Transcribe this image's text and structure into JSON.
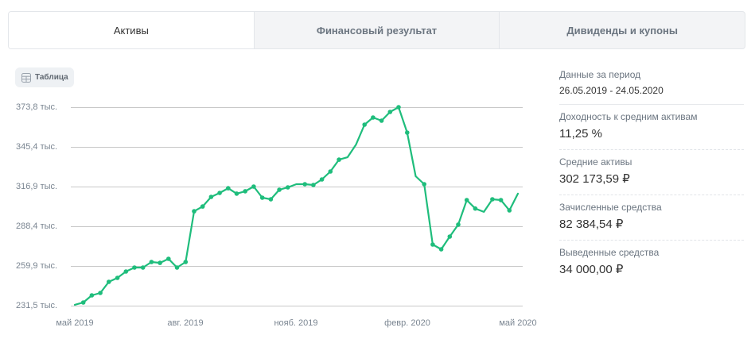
{
  "tabs": [
    {
      "label": "Активы",
      "active": true
    },
    {
      "label": "Финансовый результат",
      "active": false
    },
    {
      "label": "Дивиденды и купоны",
      "active": false
    }
  ],
  "table_button": {
    "label": "Таблица",
    "icon": "table-icon"
  },
  "sidebar": {
    "period": {
      "label": "Данные за период",
      "value": "26.05.2019 - 24.05.2020"
    },
    "stats": [
      {
        "label": "Доходность к средним активам",
        "value": "11,25 %"
      },
      {
        "label": "Средние активы",
        "value": "302 173,59 ₽"
      },
      {
        "label": "Зачисленные средства",
        "value": "82 384,54 ₽"
      },
      {
        "label": "Выведенные средства",
        "value": "34 000,00 ₽"
      }
    ]
  },
  "colors": {
    "line": "#1fbd7c",
    "grid": "#c8c8c8",
    "tick_text": "#7a8591"
  },
  "chart_data": {
    "type": "line",
    "title": "",
    "xlabel": "",
    "ylabel": "",
    "unit": "тыс. ₽",
    "y_ticks": [
      "373,8 тыс.",
      "345,4 тыс.",
      "316,9 тыс.",
      "288,4 тыс.",
      "259,9 тыс.",
      "231,5 тыс."
    ],
    "y_tick_values": [
      373.8,
      345.4,
      316.9,
      288.4,
      259.9,
      231.5
    ],
    "ylim": [
      231.5,
      373.8
    ],
    "x_ticks": [
      "май 2019",
      "авг. 2019",
      "нояб. 2019",
      "февр. 2020",
      "май 2020"
    ],
    "x_range": [
      "26.05.2019",
      "24.05.2020"
    ],
    "grid": true,
    "legend": null,
    "series": [
      {
        "name": "Активы",
        "points": [
          {
            "i": 0,
            "v": 232.1,
            "dot": false
          },
          {
            "i": 1,
            "v": 233.8,
            "dot": true
          },
          {
            "i": 2,
            "v": 238.9,
            "dot": true
          },
          {
            "i": 3,
            "v": 240.6,
            "dot": true
          },
          {
            "i": 4,
            "v": 248.6,
            "dot": true
          },
          {
            "i": 5,
            "v": 251.4,
            "dot": true
          },
          {
            "i": 6,
            "v": 256.0,
            "dot": true
          },
          {
            "i": 7,
            "v": 258.8,
            "dot": true
          },
          {
            "i": 8,
            "v": 258.8,
            "dot": true
          },
          {
            "i": 9,
            "v": 262.8,
            "dot": true
          },
          {
            "i": 10,
            "v": 262.2,
            "dot": true
          },
          {
            "i": 11,
            "v": 265.1,
            "dot": true
          },
          {
            "i": 12,
            "v": 258.8,
            "dot": true
          },
          {
            "i": 13,
            "v": 262.8,
            "dot": true
          },
          {
            "i": 14,
            "v": 299.2,
            "dot": true
          },
          {
            "i": 15,
            "v": 302.6,
            "dot": true
          },
          {
            "i": 16,
            "v": 309.5,
            "dot": true
          },
          {
            "i": 17,
            "v": 312.3,
            "dot": true
          },
          {
            "i": 18,
            "v": 315.7,
            "dot": true
          },
          {
            "i": 19,
            "v": 311.8,
            "dot": true
          },
          {
            "i": 20,
            "v": 313.5,
            "dot": true
          },
          {
            "i": 21,
            "v": 316.9,
            "dot": true
          },
          {
            "i": 22,
            "v": 308.9,
            "dot": true
          },
          {
            "i": 23,
            "v": 307.8,
            "dot": true
          },
          {
            "i": 24,
            "v": 314.6,
            "dot": true
          },
          {
            "i": 25,
            "v": 316.3,
            "dot": true
          },
          {
            "i": 26,
            "v": 318.6,
            "dot": false
          },
          {
            "i": 27,
            "v": 318.6,
            "dot": true
          },
          {
            "i": 28,
            "v": 318.0,
            "dot": true
          },
          {
            "i": 29,
            "v": 322.0,
            "dot": true
          },
          {
            "i": 30,
            "v": 327.7,
            "dot": true
          },
          {
            "i": 31,
            "v": 336.2,
            "dot": true
          },
          {
            "i": 32,
            "v": 337.9,
            "dot": false
          },
          {
            "i": 33,
            "v": 347.0,
            "dot": false
          },
          {
            "i": 34,
            "v": 361.3,
            "dot": true
          },
          {
            "i": 35,
            "v": 366.4,
            "dot": true
          },
          {
            "i": 36,
            "v": 364.1,
            "dot": true
          },
          {
            "i": 37,
            "v": 370.4,
            "dot": true
          },
          {
            "i": 38,
            "v": 373.8,
            "dot": true
          },
          {
            "i": 39,
            "v": 355.6,
            "dot": true
          },
          {
            "i": 40,
            "v": 324.3,
            "dot": false
          },
          {
            "i": 41,
            "v": 318.6,
            "dot": true
          },
          {
            "i": 42,
            "v": 275.3,
            "dot": true
          },
          {
            "i": 43,
            "v": 271.9,
            "dot": true
          },
          {
            "i": 44,
            "v": 281.0,
            "dot": true
          },
          {
            "i": 45,
            "v": 289.6,
            "dot": true
          },
          {
            "i": 46,
            "v": 307.2,
            "dot": true
          },
          {
            "i": 47,
            "v": 301.1,
            "dot": true
          },
          {
            "i": 48,
            "v": 298.7,
            "dot": false
          },
          {
            "i": 49,
            "v": 307.8,
            "dot": true
          },
          {
            "i": 50,
            "v": 307.2,
            "dot": true
          },
          {
            "i": 51,
            "v": 299.8,
            "dot": true
          },
          {
            "i": 52,
            "v": 311.8,
            "dot": false
          }
        ]
      }
    ]
  }
}
